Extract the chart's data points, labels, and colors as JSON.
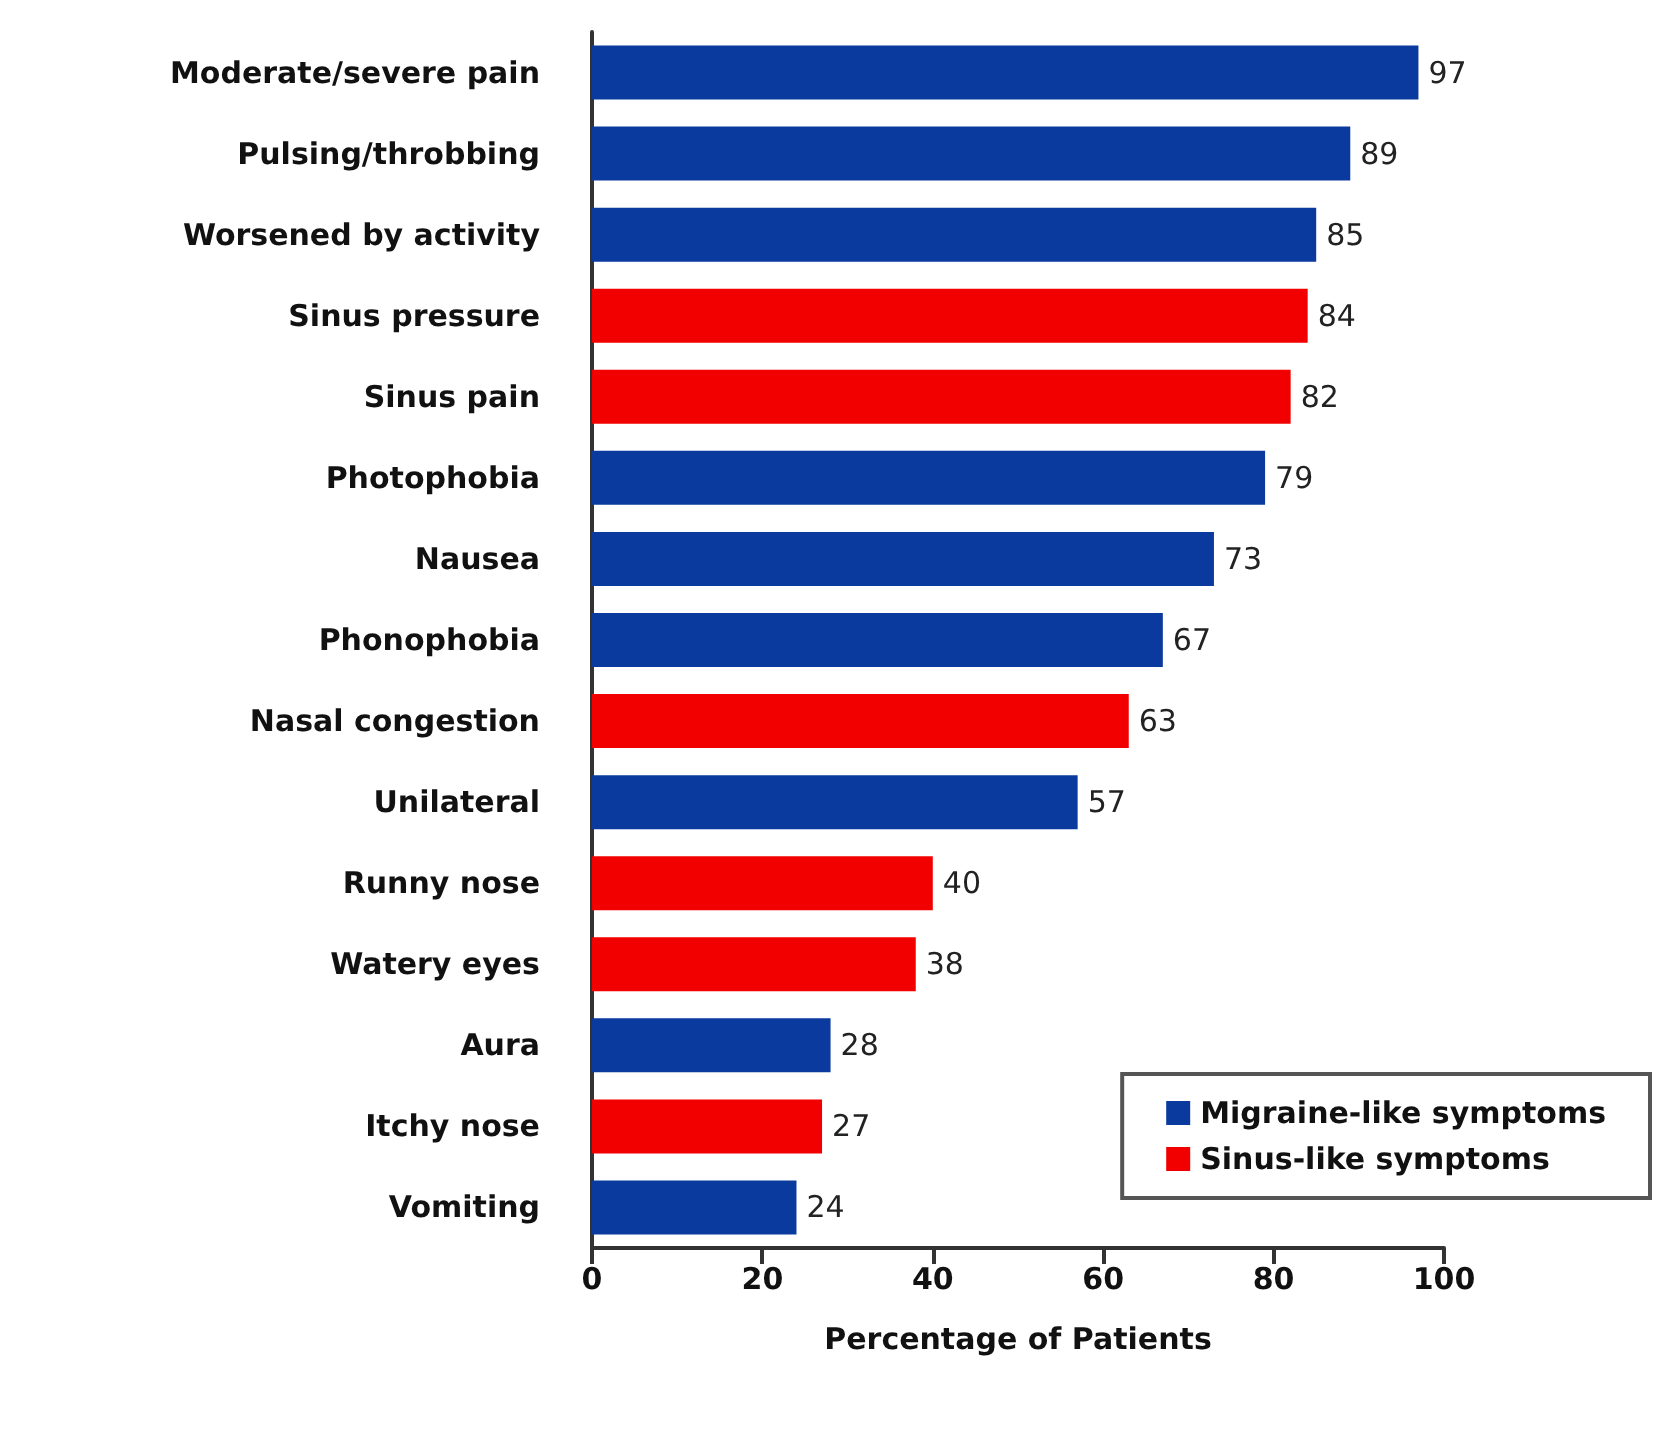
{
  "chart_data": {
    "type": "bar",
    "orientation": "horizontal",
    "stacked": true,
    "xlabel": "Percentage of Patients",
    "categories": [
      "Moderate/severe pain",
      "Pulsing/throbbing",
      "Worsened by activity",
      "Sinus pressure",
      "Sinus pain",
      "Photophobia",
      "Nausea",
      "Phonophobia",
      "Nasal congestion",
      "Unilateral",
      "Runny nose",
      "Watery eyes",
      "Aura",
      "Itchy nose",
      "Vomiting"
    ],
    "series": [
      {
        "name": "Migraine-like symptoms",
        "color": "#0a3a9e",
        "values": [
          97,
          89,
          85,
          null,
          null,
          79,
          73,
          67,
          null,
          57,
          null,
          null,
          28,
          null,
          24
        ]
      },
      {
        "name": "Sinus-like symptoms",
        "color": "#f20000",
        "values": [
          null,
          null,
          null,
          84,
          82,
          null,
          null,
          null,
          63,
          null,
          40,
          38,
          null,
          27,
          null
        ]
      }
    ],
    "xlim": [
      0,
      100
    ],
    "xticks": [
      0,
      20,
      40,
      60,
      80,
      100
    ],
    "data_labels": true,
    "legend": "bottom right",
    "grid": false
  }
}
